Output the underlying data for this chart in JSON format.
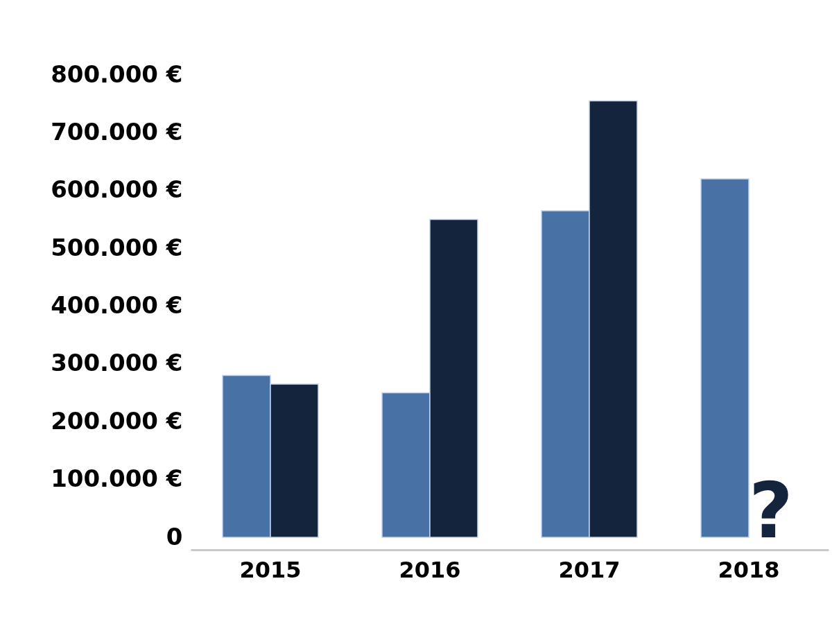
{
  "chart_data": {
    "type": "bar",
    "categories": [
      "2015",
      "2016",
      "2017",
      "2018"
    ],
    "series": [
      {
        "color": "#4872a6",
        "values": [
          280000,
          250000,
          565000,
          620000
        ]
      },
      {
        "color": "#15243d",
        "values": [
          265000,
          550000,
          755000,
          null
        ]
      }
    ],
    "ylim": [
      0,
      800000
    ],
    "yticks": [
      0,
      {
        "value": 100000,
        "label": "100.000 €"
      },
      {
        "value": 200000,
        "label": "200.000 €"
      },
      {
        "value": 300000,
        "label": "300.000 €"
      },
      {
        "value": 400000,
        "label": "400.000 €"
      },
      {
        "value": 500000,
        "label": "500.000 €"
      },
      {
        "value": 600000,
        "label": "600.000 €"
      },
      {
        "value": 700000,
        "label": "700.000 €"
      },
      {
        "value": 800000,
        "label": "800.000 €"
      }
    ],
    "annotations": [
      {
        "text": "?",
        "x": "2018",
        "y": 0
      }
    ]
  }
}
